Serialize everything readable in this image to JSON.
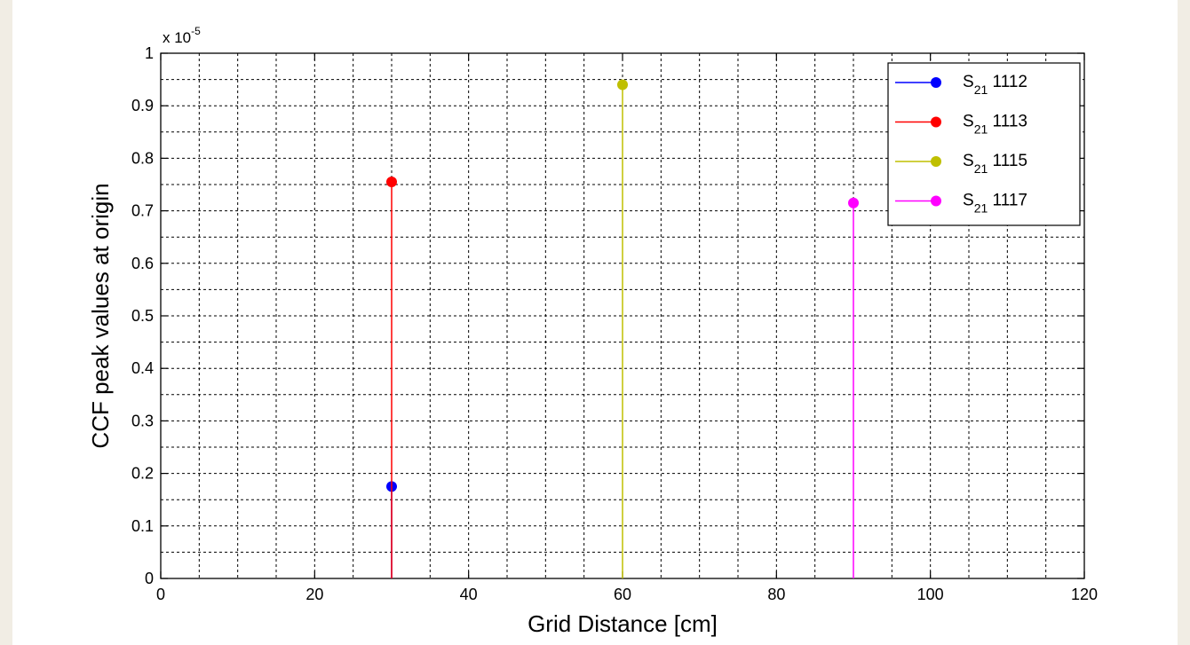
{
  "chart_data": {
    "type": "stem",
    "title": "",
    "xlabel": "Grid Distance [cm]",
    "ylabel": "CCF peak values at origin",
    "y_multiplier_label": "x 10",
    "y_multiplier_exponent": "-5",
    "xlim": [
      0,
      120
    ],
    "ylim": [
      0,
      1
    ],
    "x_ticks": [
      "0",
      "20",
      "40",
      "60",
      "80",
      "100",
      "120"
    ],
    "y_ticks": [
      "0",
      "0.1",
      "0.2",
      "0.3",
      "0.4",
      "0.5",
      "0.6",
      "0.7",
      "0.8",
      "0.9",
      "1"
    ],
    "grid": true,
    "legend_position": "top-right",
    "series": [
      {
        "name": "S",
        "subscript": "21",
        "suffix": " 1112",
        "color": "#0000ff",
        "x": [
          30
        ],
        "y": [
          0.175
        ]
      },
      {
        "name": "S",
        "subscript": "21",
        "suffix": " 1113",
        "color": "#ff0000",
        "x": [
          30
        ],
        "y": [
          0.755
        ]
      },
      {
        "name": "S",
        "subscript": "21",
        "suffix": " 1115",
        "color": "#bfbf00",
        "x": [
          60
        ],
        "y": [
          0.94
        ]
      },
      {
        "name": "S",
        "subscript": "21",
        "suffix": " 1117",
        "color": "#ff00ff",
        "x": [
          90
        ],
        "y": [
          0.715
        ]
      }
    ]
  }
}
